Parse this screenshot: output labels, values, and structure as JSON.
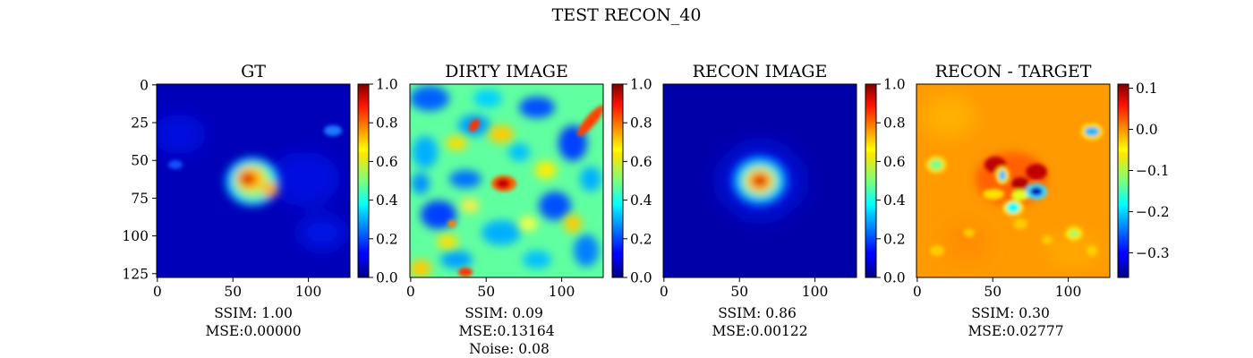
{
  "figure_title": "TEST RECON_40",
  "colormap": "jet",
  "chart_data": [
    {
      "type": "heatmap",
      "title": "GT",
      "xlim": [
        0,
        127
      ],
      "ylim": [
        127,
        0
      ],
      "x_ticks": [
        0,
        50,
        100
      ],
      "y_ticks": [
        0,
        25,
        50,
        75,
        100,
        125
      ],
      "colorbar": {
        "range": [
          0.0,
          1.0
        ],
        "ticks": [
          0.0,
          0.2,
          0.4,
          0.6,
          0.8,
          1.0
        ],
        "labels": [
          "0.0",
          "0.2",
          "0.4",
          "0.6",
          "0.8",
          "1.0"
        ]
      },
      "caption": [
        "SSIM: 1.00",
        "MSE:0.00000"
      ]
    },
    {
      "type": "heatmap",
      "title": "DIRTY IMAGE",
      "xlim": [
        0,
        127
      ],
      "ylim": [
        127,
        0
      ],
      "x_ticks": [
        0,
        50,
        100
      ],
      "colorbar": {
        "range": [
          0.0,
          1.0
        ],
        "ticks": [
          0.0,
          0.2,
          0.4,
          0.6,
          0.8,
          1.0
        ],
        "labels": [
          "0.0",
          "0.2",
          "0.4",
          "0.6",
          "0.8",
          "1.0"
        ]
      },
      "caption": [
        "SSIM: 0.09",
        "MSE:0.13164",
        "Noise: 0.08"
      ]
    },
    {
      "type": "heatmap",
      "title": "RECON IMAGE",
      "xlim": [
        0,
        127
      ],
      "ylim": [
        127,
        0
      ],
      "x_ticks": [
        0,
        50,
        100
      ],
      "colorbar": {
        "range": [
          0.0,
          1.0
        ],
        "ticks": [
          0.0,
          0.2,
          0.4,
          0.6,
          0.8,
          1.0
        ],
        "labels": [
          "0.0",
          "0.2",
          "0.4",
          "0.6",
          "0.8",
          "1.0"
        ]
      },
      "caption": [
        "SSIM: 0.86",
        "MSE:0.00122"
      ]
    },
    {
      "type": "heatmap",
      "title": "RECON - TARGET",
      "xlim": [
        0,
        127
      ],
      "ylim": [
        127,
        0
      ],
      "x_ticks": [
        0,
        50,
        100
      ],
      "colorbar": {
        "range": [
          -0.36,
          0.11
        ],
        "ticks": [
          -0.3,
          -0.2,
          -0.1,
          0.0,
          0.1
        ],
        "labels": [
          "−0.3",
          "−0.2",
          "−0.1",
          "0.0",
          "0.1"
        ]
      },
      "caption": [
        "SSIM: 0.30",
        "MSE:0.02777"
      ]
    }
  ]
}
